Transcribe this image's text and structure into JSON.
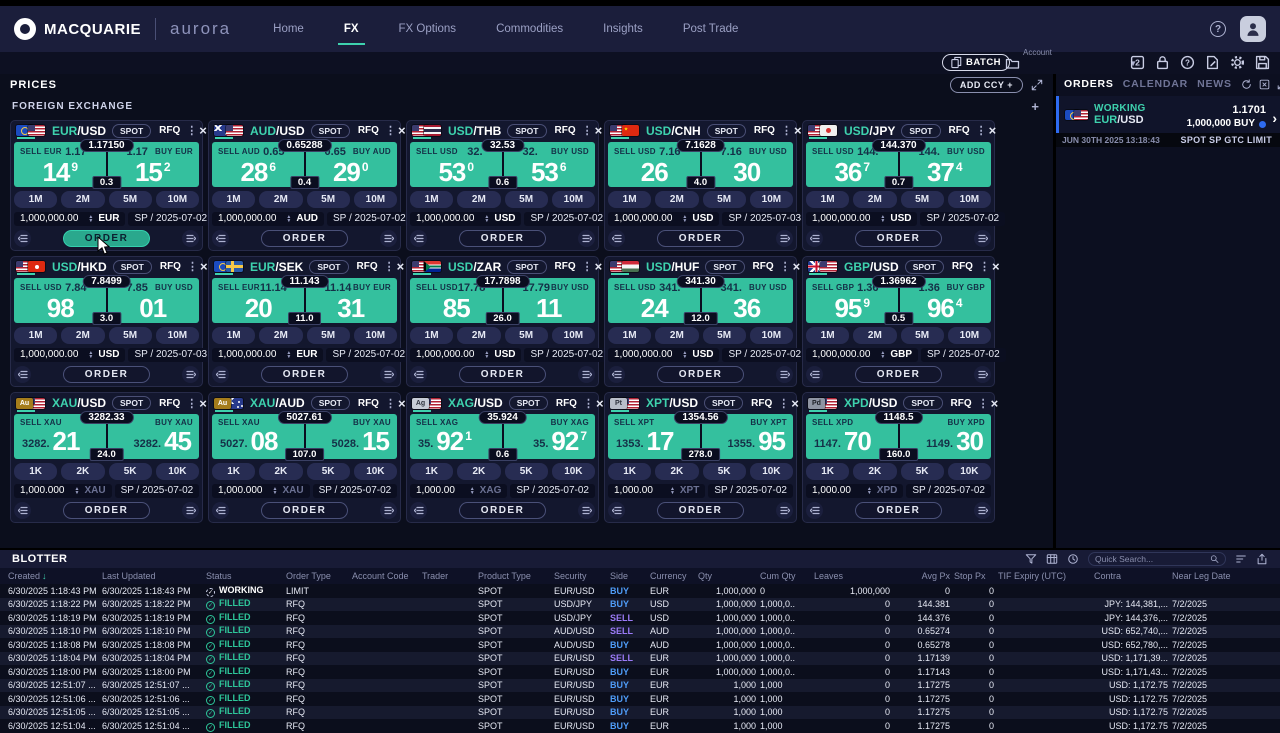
{
  "nav": {
    "brand": "MACQUARIE",
    "product": "aurora",
    "items": [
      {
        "label": "Home",
        "active": false
      },
      {
        "label": "FX",
        "active": true
      },
      {
        "label": "FX Options",
        "active": false
      },
      {
        "label": "Commodities",
        "active": false
      },
      {
        "label": "Insights",
        "active": false
      },
      {
        "label": "Post Trade",
        "active": false
      }
    ]
  },
  "toolbar": {
    "batch_label": "BATCH",
    "account_label": "Account"
  },
  "prices": {
    "title": "PRICES",
    "add_ccy_label": "ADD CCY +",
    "section_title": "FOREIGN EXCHANGE"
  },
  "labels": {
    "spot": "SPOT",
    "rfq": "RFQ",
    "order": "ORDER"
  },
  "colors": {
    "accent_teal": "#3ed2ae",
    "price_panel": "#34c09e",
    "buy_blue": "#4f9cf7",
    "sell_purple": "#9b7bf7",
    "filled_green": "#2ec79a",
    "working_blue_bar": "#2e6bf0"
  },
  "tiles": [
    {
      "base": "EUR",
      "quote": "/USD",
      "flags": [
        "eu",
        "us"
      ],
      "metal": false,
      "order_active": true,
      "sell": {
        "label": "SELL EUR",
        "prefix": "1.17",
        "big": "14",
        "sup": "9"
      },
      "buy": {
        "label": "BUY EUR",
        "prefix": "1.17",
        "big": "15",
        "sup": "2"
      },
      "mid": "1.17150",
      "spread": "0.3",
      "tenors": [
        "1M",
        "2M",
        "5M",
        "10M"
      ],
      "amount": "1,000,000.00",
      "ccy": "EUR",
      "date": "SP / 2025-07-02"
    },
    {
      "base": "AUD",
      "quote": "/USD",
      "flags": [
        "au",
        "us"
      ],
      "metal": false,
      "order_active": false,
      "sell": {
        "label": "SELL AUD",
        "prefix": "0.65",
        "big": "28",
        "sup": "6"
      },
      "buy": {
        "label": "BUY AUD",
        "prefix": "0.65",
        "big": "29",
        "sup": "0"
      },
      "mid": "0.65288",
      "spread": "0.4",
      "tenors": [
        "1M",
        "2M",
        "5M",
        "10M"
      ],
      "amount": "1,000,000.00",
      "ccy": "AUD",
      "date": "SP / 2025-07-02"
    },
    {
      "base": "USD",
      "quote": "/THB",
      "flags": [
        "us",
        "th"
      ],
      "metal": false,
      "order_active": false,
      "sell": {
        "label": "SELL USD",
        "prefix": "32.",
        "big": "53",
        "sup": "0"
      },
      "buy": {
        "label": "BUY USD",
        "prefix": "32.",
        "big": "53",
        "sup": "6"
      },
      "mid": "32.53",
      "spread": "0.6",
      "tenors": [
        "1M",
        "2M",
        "5M",
        "10M"
      ],
      "amount": "1,000,000.00",
      "ccy": "USD",
      "date": "SP / 2025-07-02"
    },
    {
      "base": "USD",
      "quote": "/CNH",
      "flags": [
        "us",
        "cn"
      ],
      "metal": false,
      "order_active": false,
      "sell": {
        "label": "SELL USD",
        "prefix": "7.16",
        "big": "26",
        "sup": ""
      },
      "buy": {
        "label": "BUY USD",
        "prefix": "7.16",
        "big": "30",
        "sup": ""
      },
      "mid": "7.1628",
      "spread": "4.0",
      "tenors": [
        "1M",
        "2M",
        "5M",
        "10M"
      ],
      "amount": "1,000,000.00",
      "ccy": "USD",
      "date": "SP / 2025-07-03"
    },
    {
      "base": "USD",
      "quote": "/JPY",
      "flags": [
        "us",
        "jp"
      ],
      "metal": false,
      "order_active": false,
      "sell": {
        "label": "SELL USD",
        "prefix": "144.",
        "big": "36",
        "sup": "7"
      },
      "buy": {
        "label": "BUY USD",
        "prefix": "144.",
        "big": "37",
        "sup": "4"
      },
      "mid": "144.370",
      "spread": "0.7",
      "tenors": [
        "1M",
        "2M",
        "5M",
        "10M"
      ],
      "amount": "1,000,000.00",
      "ccy": "USD",
      "date": "SP / 2025-07-02"
    },
    {
      "base": "USD",
      "quote": "/HKD",
      "flags": [
        "us",
        "hk"
      ],
      "metal": false,
      "order_active": false,
      "sell": {
        "label": "SELL USD",
        "prefix": "7.84",
        "big": "98",
        "sup": ""
      },
      "buy": {
        "label": "BUY USD",
        "prefix": "7.85",
        "big": "01",
        "sup": ""
      },
      "mid": "7.8499",
      "spread": "3.0",
      "tenors": [
        "1M",
        "2M",
        "5M",
        "10M"
      ],
      "amount": "1,000,000.00",
      "ccy": "USD",
      "date": "SP / 2025-07-03"
    },
    {
      "base": "EUR",
      "quote": "/SEK",
      "flags": [
        "eu",
        "se"
      ],
      "metal": false,
      "order_active": false,
      "sell": {
        "label": "SELL EUR",
        "prefix": "11.14",
        "big": "20",
        "sup": ""
      },
      "buy": {
        "label": "BUY EUR",
        "prefix": "11.14",
        "big": "31",
        "sup": ""
      },
      "mid": "11.143",
      "spread": "11.0",
      "tenors": [
        "1M",
        "2M",
        "5M",
        "10M"
      ],
      "amount": "1,000,000.00",
      "ccy": "EUR",
      "date": "SP / 2025-07-02"
    },
    {
      "base": "USD",
      "quote": "/ZAR",
      "flags": [
        "us",
        "za"
      ],
      "metal": false,
      "order_active": false,
      "sell": {
        "label": "SELL USD",
        "prefix": "17.78",
        "big": "85",
        "sup": ""
      },
      "buy": {
        "label": "BUY USD",
        "prefix": "17.79",
        "big": "11",
        "sup": ""
      },
      "mid": "17.7898",
      "spread": "26.0",
      "tenors": [
        "1M",
        "2M",
        "5M",
        "10M"
      ],
      "amount": "1,000,000.00",
      "ccy": "USD",
      "date": "SP / 2025-07-02"
    },
    {
      "base": "USD",
      "quote": "/HUF",
      "flags": [
        "us",
        "hu"
      ],
      "metal": false,
      "order_active": false,
      "sell": {
        "label": "SELL USD",
        "prefix": "341.",
        "big": "24",
        "sup": ""
      },
      "buy": {
        "label": "BUY USD",
        "prefix": "341.",
        "big": "36",
        "sup": ""
      },
      "mid": "341.30",
      "spread": "12.0",
      "tenors": [
        "1M",
        "2M",
        "5M",
        "10M"
      ],
      "amount": "1,000,000.00",
      "ccy": "USD",
      "date": "SP / 2025-07-02"
    },
    {
      "base": "GBP",
      "quote": "/USD",
      "flags": [
        "gb",
        "us"
      ],
      "metal": false,
      "order_active": false,
      "sell": {
        "label": "SELL GBP",
        "prefix": "1.36",
        "big": "95",
        "sup": "9"
      },
      "buy": {
        "label": "BUY GBP",
        "prefix": "1.36",
        "big": "96",
        "sup": "4"
      },
      "mid": "1.36962",
      "spread": "0.5",
      "tenors": [
        "1M",
        "2M",
        "5M",
        "10M"
      ],
      "amount": "1,000,000.00",
      "ccy": "GBP",
      "date": "SP / 2025-07-02"
    },
    {
      "base": "XAU",
      "quote": "/USD",
      "flags": [
        "mAu",
        "us"
      ],
      "metal": true,
      "order_active": false,
      "sell": {
        "label": "SELL XAU",
        "prefix": "3282.",
        "big": "21",
        "sup": ""
      },
      "buy": {
        "label": "BUY XAU",
        "prefix": "3282.",
        "big": "45",
        "sup": ""
      },
      "mid": "3282.33",
      "spread": "24.0",
      "tenors": [
        "1K",
        "2K",
        "5K",
        "10K"
      ],
      "amount": "1,000.000",
      "ccy": "XAU",
      "date": "SP / 2025-07-02"
    },
    {
      "base": "XAU",
      "quote": "/AUD",
      "flags": [
        "mAu",
        "au"
      ],
      "metal": true,
      "order_active": false,
      "sell": {
        "label": "SELL XAU",
        "prefix": "5027.",
        "big": "08",
        "sup": ""
      },
      "buy": {
        "label": "BUY XAU",
        "prefix": "5028.",
        "big": "15",
        "sup": ""
      },
      "mid": "5027.61",
      "spread": "107.0",
      "tenors": [
        "1K",
        "2K",
        "5K",
        "10K"
      ],
      "amount": "1,000.000",
      "ccy": "XAU",
      "date": "SP / 2025-07-02"
    },
    {
      "base": "XAG",
      "quote": "/USD",
      "flags": [
        "mAg",
        "us"
      ],
      "metal": true,
      "order_active": false,
      "sell": {
        "label": "SELL XAG",
        "prefix": "35.",
        "big": "92",
        "sup": "1"
      },
      "buy": {
        "label": "BUY XAG",
        "prefix": "35.",
        "big": "92",
        "sup": "7"
      },
      "mid": "35.924",
      "spread": "0.6",
      "tenors": [
        "1K",
        "2K",
        "5K",
        "10K"
      ],
      "amount": "1,000.00",
      "ccy": "XAG",
      "date": "SP / 2025-07-02"
    },
    {
      "base": "XPT",
      "quote": "/USD",
      "flags": [
        "mPt",
        "us"
      ],
      "metal": true,
      "order_active": false,
      "sell": {
        "label": "SELL XPT",
        "prefix": "1353.",
        "big": "17",
        "sup": ""
      },
      "buy": {
        "label": "BUY XPT",
        "prefix": "1355.",
        "big": "95",
        "sup": ""
      },
      "mid": "1354.56",
      "spread": "278.0",
      "tenors": [
        "1K",
        "2K",
        "5K",
        "10K"
      ],
      "amount": "1,000.00",
      "ccy": "XPT",
      "date": "SP / 2025-07-02"
    },
    {
      "base": "XPD",
      "quote": "/USD",
      "flags": [
        "mPd",
        "us"
      ],
      "metal": true,
      "order_active": false,
      "sell": {
        "label": "SELL XPD",
        "prefix": "1147.",
        "big": "70",
        "sup": ""
      },
      "buy": {
        "label": "BUY XPD",
        "prefix": "1149.",
        "big": "30",
        "sup": ""
      },
      "mid": "1148.5",
      "spread": "160.0",
      "tenors": [
        "1K",
        "2K",
        "5K",
        "10K"
      ],
      "amount": "1,000.00",
      "ccy": "XPD",
      "date": "SP / 2025-07-02"
    }
  ],
  "orders_panel": {
    "tabs": [
      "ORDERS",
      "CALENDAR",
      "NEWS"
    ],
    "order": {
      "status": "WORKING",
      "base": "EUR",
      "quote": "/USD",
      "price": "1.1701",
      "qty_side": "1,000,000 BUY",
      "timestamp": "JUN 30TH 2025 13:18:43",
      "details": "SPOT SP GTC LIMIT"
    }
  },
  "blotter": {
    "title": "BLOTTER",
    "quick_search_placeholder": "Quick Search...",
    "columns": [
      "Created",
      "Last Updated",
      "Status",
      "Order Type",
      "Account Code",
      "Trader",
      "Product Type",
      "Security",
      "Side",
      "Currency",
      "Qty",
      "Cum Qty",
      "Leaves",
      "Avg Px",
      "Stop Px",
      "TIF Expiry (UTC)",
      "Contra",
      "Near Leg Date"
    ],
    "rows": [
      {
        "created": "6/30/2025 1:18:43 PM",
        "updated": "6/30/2025 1:18:43 PM",
        "status": "WORKING",
        "type": "LIMIT",
        "account": "",
        "trader": "",
        "product": "SPOT",
        "security": "EUR/USD",
        "side": "BUY",
        "ccy": "EUR",
        "qty": "1,000,000",
        "cum": "0",
        "leaves": "1,000,000",
        "avg": "0",
        "stop": "0",
        "tif": "",
        "contra": "",
        "near": ""
      },
      {
        "created": "6/30/2025 1:18:22 PM",
        "updated": "6/30/2025 1:18:22 PM",
        "status": "FILLED",
        "type": "RFQ",
        "account": "",
        "trader": "",
        "product": "SPOT",
        "security": "USD/JPY",
        "side": "BUY",
        "ccy": "USD",
        "qty": "1,000,000",
        "cum": "1,000,0..",
        "leaves": "0",
        "avg": "144.381",
        "stop": "0",
        "tif": "",
        "contra": "JPY: 144,381,...",
        "near": "7/2/2025"
      },
      {
        "created": "6/30/2025 1:18:19 PM",
        "updated": "6/30/2025 1:18:19 PM",
        "status": "FILLED",
        "type": "RFQ",
        "account": "",
        "trader": "",
        "product": "SPOT",
        "security": "USD/JPY",
        "side": "SELL",
        "ccy": "USD",
        "qty": "1,000,000",
        "cum": "1,000,0..",
        "leaves": "0",
        "avg": "144.376",
        "stop": "0",
        "tif": "",
        "contra": "JPY: 144,376,...",
        "near": "7/2/2025"
      },
      {
        "created": "6/30/2025 1:18:10 PM",
        "updated": "6/30/2025 1:18:10 PM",
        "status": "FILLED",
        "type": "RFQ",
        "account": "",
        "trader": "",
        "product": "SPOT",
        "security": "AUD/USD",
        "side": "SELL",
        "ccy": "AUD",
        "qty": "1,000,000",
        "cum": "1,000,0..",
        "leaves": "0",
        "avg": "0.65274",
        "stop": "0",
        "tif": "",
        "contra": "USD: 652,740,...",
        "near": "7/2/2025"
      },
      {
        "created": "6/30/2025 1:18:08 PM",
        "updated": "6/30/2025 1:18:08 PM",
        "status": "FILLED",
        "type": "RFQ",
        "account": "",
        "trader": "",
        "product": "SPOT",
        "security": "AUD/USD",
        "side": "BUY",
        "ccy": "AUD",
        "qty": "1,000,000",
        "cum": "1,000,0..",
        "leaves": "0",
        "avg": "0.65278",
        "stop": "0",
        "tif": "",
        "contra": "USD: 652,780,...",
        "near": "7/2/2025"
      },
      {
        "created": "6/30/2025 1:18:04 PM",
        "updated": "6/30/2025 1:18:04 PM",
        "status": "FILLED",
        "type": "RFQ",
        "account": "",
        "trader": "",
        "product": "SPOT",
        "security": "EUR/USD",
        "side": "SELL",
        "ccy": "EUR",
        "qty": "1,000,000",
        "cum": "1,000,0..",
        "leaves": "0",
        "avg": "1.17139",
        "stop": "0",
        "tif": "",
        "contra": "USD: 1,171,39...",
        "near": "7/2/2025"
      },
      {
        "created": "6/30/2025 1:18:00 PM",
        "updated": "6/30/2025 1:18:00 PM",
        "status": "FILLED",
        "type": "RFQ",
        "account": "",
        "trader": "",
        "product": "SPOT",
        "security": "EUR/USD",
        "side": "BUY",
        "ccy": "EUR",
        "qty": "1,000,000",
        "cum": "1,000,0..",
        "leaves": "0",
        "avg": "1.17143",
        "stop": "0",
        "tif": "",
        "contra": "USD: 1,171,43...",
        "near": "7/2/2025"
      },
      {
        "created": "6/30/2025 12:51:07 ...",
        "updated": "6/30/2025 12:51:07 ...",
        "status": "FILLED",
        "type": "RFQ",
        "account": "",
        "trader": "",
        "product": "SPOT",
        "security": "EUR/USD",
        "side": "BUY",
        "ccy": "EUR",
        "qty": "1,000",
        "cum": "1,000",
        "leaves": "0",
        "avg": "1.17275",
        "stop": "0",
        "tif": "",
        "contra": "USD: 1,172.75",
        "near": "7/2/2025"
      },
      {
        "created": "6/30/2025 12:51:06 ...",
        "updated": "6/30/2025 12:51:06 ...",
        "status": "FILLED",
        "type": "RFQ",
        "account": "",
        "trader": "",
        "product": "SPOT",
        "security": "EUR/USD",
        "side": "BUY",
        "ccy": "EUR",
        "qty": "1,000",
        "cum": "1,000",
        "leaves": "0",
        "avg": "1.17275",
        "stop": "0",
        "tif": "",
        "contra": "USD: 1,172.75",
        "near": "7/2/2025"
      },
      {
        "created": "6/30/2025 12:51:05 ...",
        "updated": "6/30/2025 12:51:05 ...",
        "status": "FILLED",
        "type": "RFQ",
        "account": "",
        "trader": "",
        "product": "SPOT",
        "security": "EUR/USD",
        "side": "BUY",
        "ccy": "EUR",
        "qty": "1,000",
        "cum": "1,000",
        "leaves": "0",
        "avg": "1.17275",
        "stop": "0",
        "tif": "",
        "contra": "USD: 1,172.75",
        "near": "7/2/2025"
      },
      {
        "created": "6/30/2025 12:51:04 ...",
        "updated": "6/30/2025 12:51:04 ...",
        "status": "FILLED",
        "type": "RFQ",
        "account": "",
        "trader": "",
        "product": "SPOT",
        "security": "EUR/USD",
        "side": "BUY",
        "ccy": "EUR",
        "qty": "1,000",
        "cum": "1,000",
        "leaves": "0",
        "avg": "1.17275",
        "stop": "0",
        "tif": "",
        "contra": "USD: 1,172.75",
        "near": "7/2/2025"
      }
    ]
  }
}
